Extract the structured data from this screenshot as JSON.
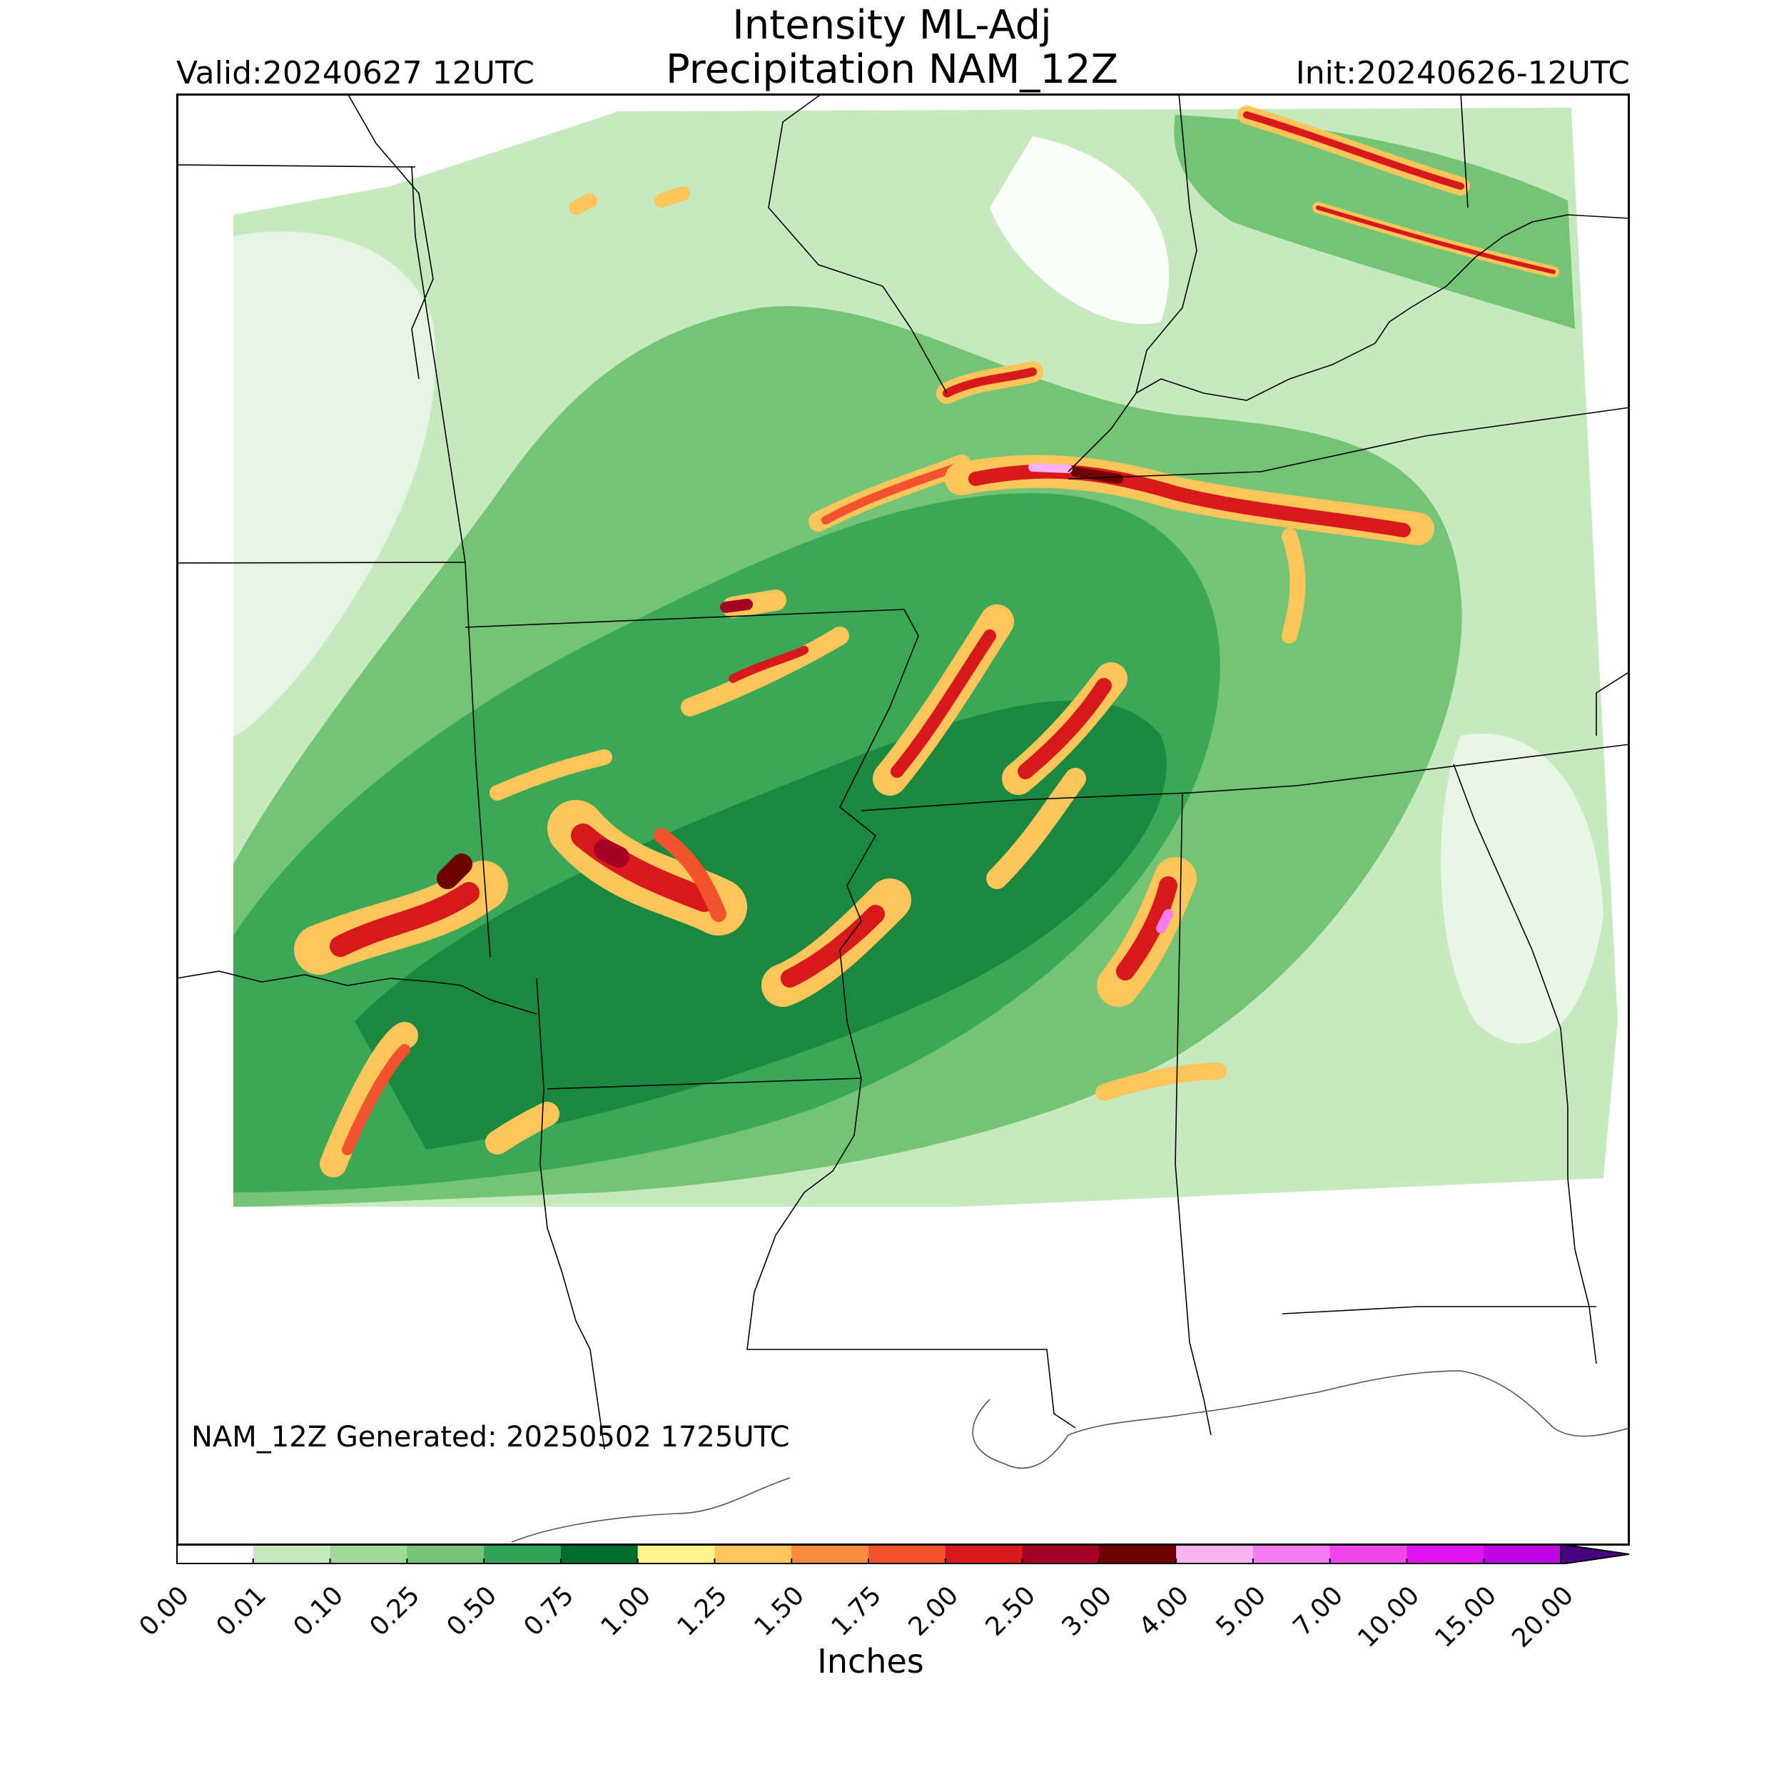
{
  "header": {
    "title_line1": "Intensity ML-Adj",
    "title_line2": "Precipitation NAM_12Z",
    "valid": "Valid:20240627 12UTC",
    "init": "Init:20240626-12UTC"
  },
  "footer": {
    "generated": "NAM_12Z Generated: 20250502 1725UTC"
  },
  "colorbar": {
    "unit_label": "Inches",
    "ticks": [
      "0.00",
      "0.01",
      "0.10",
      "0.25",
      "0.50",
      "0.75",
      "1.00",
      "1.25",
      "1.50",
      "1.75",
      "2.00",
      "2.50",
      "3.00",
      "4.00",
      "5.00",
      "7.00",
      "10.00",
      "15.00",
      "20.00"
    ],
    "colors": [
      "#ffffff",
      "#c7e9c0",
      "#a1d99b",
      "#74c476",
      "#31a354",
      "#006d2c",
      "#fff38c",
      "#fdc55a",
      "#fa8a3c",
      "#f2522c",
      "#d7191c",
      "#a50026",
      "#6e0000",
      "#f8b2f2",
      "#f47cf0",
      "#ef47ec",
      "#e115f3",
      "#c106e6",
      "#9900cc"
    ],
    "extend_color": "#4b0082"
  }
}
